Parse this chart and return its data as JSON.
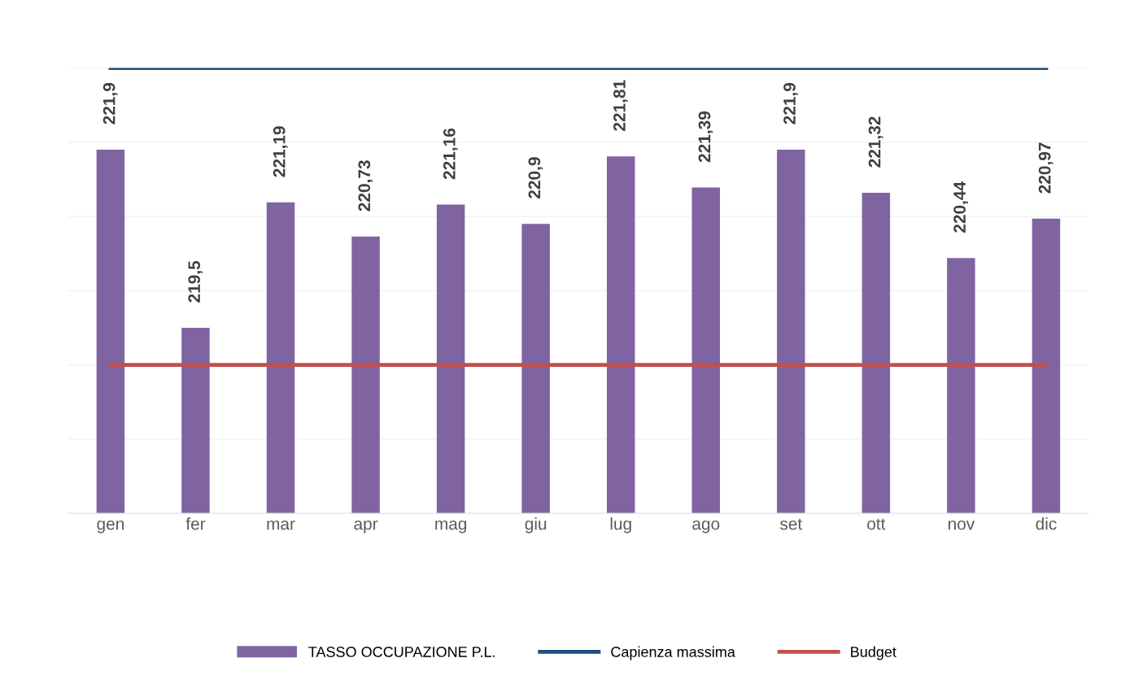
{
  "chart_data": {
    "type": "bar",
    "categories": [
      "gen",
      "fer",
      "mar",
      "apr",
      "mag",
      "giu",
      "lug",
      "ago",
      "set",
      "ott",
      "nov",
      "dic"
    ],
    "series": [
      {
        "name": "TASSO OCCUPAZIONE P.L.",
        "color": "#8064a2",
        "values": [
          221.9,
          219.5,
          221.19,
          220.73,
          221.16,
          220.9,
          221.81,
          221.39,
          221.9,
          221.32,
          220.44,
          220.97
        ],
        "value_labels": [
          "221,9",
          "219,5",
          "221,19",
          "220,73",
          "221,16",
          "220,9",
          "221,81",
          "221,39",
          "221,9",
          "221,32",
          "220,44",
          "220,97"
        ]
      },
      {
        "name": "Capienza massima",
        "type": "line",
        "color": "#1f4e79",
        "values": [
          223,
          223,
          223,
          223,
          223,
          223,
          223,
          223,
          223,
          223,
          223,
          223
        ]
      },
      {
        "name": "Budget",
        "type": "line",
        "color": "#c0504d",
        "values": [
          219,
          219,
          219,
          219,
          219,
          219,
          219,
          219,
          219,
          219,
          219,
          219
        ]
      }
    ],
    "ylim": [
      217,
      223
    ],
    "yticks": [
      {
        "value": 217,
        "label": null
      },
      {
        "value": 218,
        "label": null
      },
      {
        "value": 219,
        "label": null
      },
      {
        "value": 220,
        "label": null
      },
      {
        "value": 221,
        "label": null
      },
      {
        "value": 222,
        "label": null
      },
      {
        "value": 223,
        "label": null
      }
    ],
    "grid": "y",
    "tick_labels": "x",
    "legend": "bottom",
    "marker": "none",
    "line_style": "solid"
  }
}
